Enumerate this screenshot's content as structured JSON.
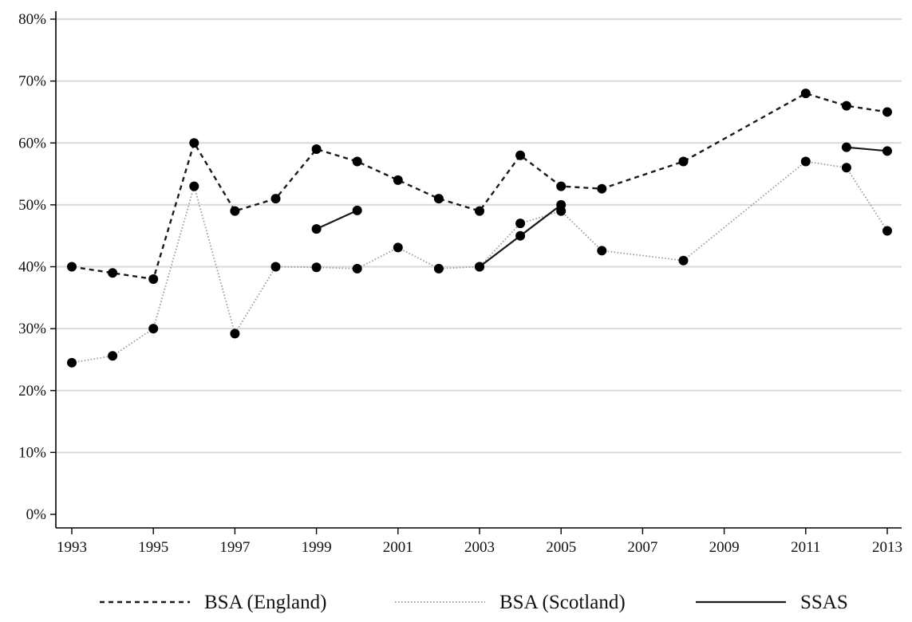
{
  "chart_data": {
    "type": "line",
    "title": "",
    "xlabel": "",
    "ylabel": "",
    "xlim": [
      1993,
      2013
    ],
    "ylim": [
      0,
      80
    ],
    "x_ticks": [
      "1993",
      "1995",
      "1997",
      "1999",
      "2001",
      "2003",
      "2005",
      "2007",
      "2009",
      "2011",
      "2013"
    ],
    "y_ticks": [
      "0%",
      "10%",
      "20%",
      "30%",
      "40%",
      "50%",
      "60%",
      "70%",
      "80%"
    ],
    "grid": "horizontal",
    "legend_position": "bottom",
    "series": [
      {
        "name": "BSA (England)",
        "style": "dashed",
        "segments": [
          [
            [
              1993,
              40
            ],
            [
              1994,
              39
            ],
            [
              1995,
              38
            ],
            [
              1996,
              60
            ],
            [
              1997,
              49
            ],
            [
              1998,
              51
            ],
            [
              1999,
              59
            ],
            [
              2000,
              57
            ],
            [
              2001,
              54
            ],
            [
              2002,
              51
            ],
            [
              2003,
              49
            ],
            [
              2004,
              58
            ],
            [
              2005,
              53
            ],
            [
              2006,
              52.6
            ],
            [
              2008,
              57
            ],
            [
              2011,
              68
            ],
            [
              2012,
              66
            ],
            [
              2013,
              65
            ]
          ]
        ]
      },
      {
        "name": "BSA (Scotland)",
        "style": "dotted",
        "segments": [
          [
            [
              1993,
              24.5
            ],
            [
              1994,
              25.6
            ],
            [
              1995,
              30
            ],
            [
              1996,
              53
            ],
            [
              1997,
              29.2
            ],
            [
              1998,
              40
            ],
            [
              1999,
              39.9
            ],
            [
              2000,
              39.7
            ],
            [
              2001,
              43.1
            ],
            [
              2002,
              39.7
            ],
            [
              2003,
              40
            ],
            [
              2004,
              47
            ],
            [
              2005,
              49
            ],
            [
              2006,
              42.6
            ],
            [
              2008,
              41
            ],
            [
              2011,
              57
            ],
            [
              2012,
              56
            ],
            [
              2013,
              45.8
            ]
          ]
        ]
      },
      {
        "name": "SSAS",
        "style": "solid",
        "segments": [
          [
            [
              1999,
              46.1
            ],
            [
              2000,
              49.1
            ]
          ],
          [
            [
              2003,
              40
            ],
            [
              2004,
              45
            ],
            [
              2005,
              50
            ]
          ],
          [
            [
              2012,
              59.3
            ],
            [
              2013,
              58.7
            ]
          ]
        ]
      }
    ],
    "colors": {
      "line": "#1a1a1a",
      "dotted_line": "#999999",
      "grid": "#d9d9d9",
      "marker": "#000000"
    }
  }
}
